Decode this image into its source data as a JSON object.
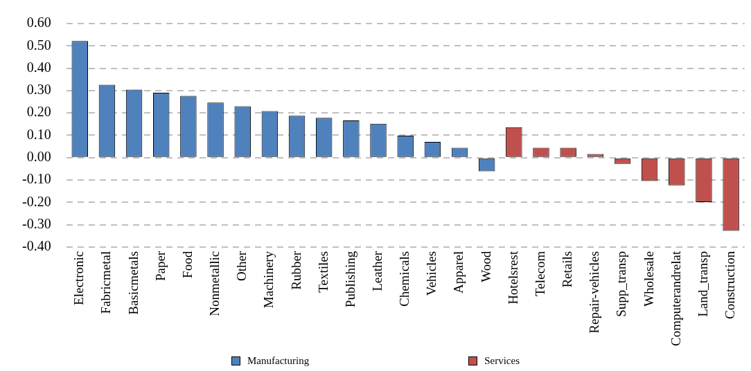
{
  "chart_data": {
    "type": "bar",
    "categories": [
      "Electronic",
      "Fabricmetal",
      "Basicmetals",
      "Paper",
      "Food",
      "Nonmetallic",
      "Other",
      "Machinery",
      "Rubber",
      "Textiles",
      "Publishing",
      "Leather",
      "Chemicals",
      "Vehicles",
      "Apparel",
      "Wood",
      "Hotelsrest",
      "Telecom",
      "Retails",
      "Repair-vehicles",
      "Supp_transp",
      "Wholesale",
      "Computerandrelat",
      "Land_transp",
      "Construction"
    ],
    "series": [
      {
        "name": "Manufacturing",
        "color": "#4f81bd",
        "values": [
          0.522,
          0.326,
          0.304,
          0.29,
          0.276,
          0.246,
          0.23,
          0.208,
          0.187,
          0.178,
          0.166,
          0.152,
          0.098,
          0.07,
          0.044,
          -0.061,
          null,
          null,
          null,
          null,
          null,
          null,
          null,
          null,
          null
        ]
      },
      {
        "name": "Services",
        "color": "#c0504d",
        "values": [
          null,
          null,
          null,
          null,
          null,
          null,
          null,
          null,
          null,
          null,
          null,
          null,
          null,
          null,
          null,
          null,
          0.136,
          0.044,
          0.044,
          0.016,
          -0.028,
          -0.105,
          -0.124,
          -0.199,
          -0.328
        ]
      }
    ],
    "ylim": [
      -0.4,
      0.6
    ],
    "yticks": [
      {
        "value": -0.4,
        "label": "-0.40"
      },
      {
        "value": -0.3,
        "label": "-0.30"
      },
      {
        "value": -0.2,
        "label": "-0.20"
      },
      {
        "value": -0.1,
        "label": "-0.10"
      },
      {
        "value": 0,
        "label": "0.00"
      },
      {
        "value": 0.1,
        "label": "0.10"
      },
      {
        "value": 0.2,
        "label": "0.20"
      },
      {
        "value": 0.3,
        "label": "0.30"
      },
      {
        "value": 0.4,
        "label": "0.40"
      },
      {
        "value": 0.5,
        "label": "0.50"
      },
      {
        "value": 0.6,
        "label": "0.60"
      }
    ],
    "grid": "y",
    "legend": "bottom"
  }
}
